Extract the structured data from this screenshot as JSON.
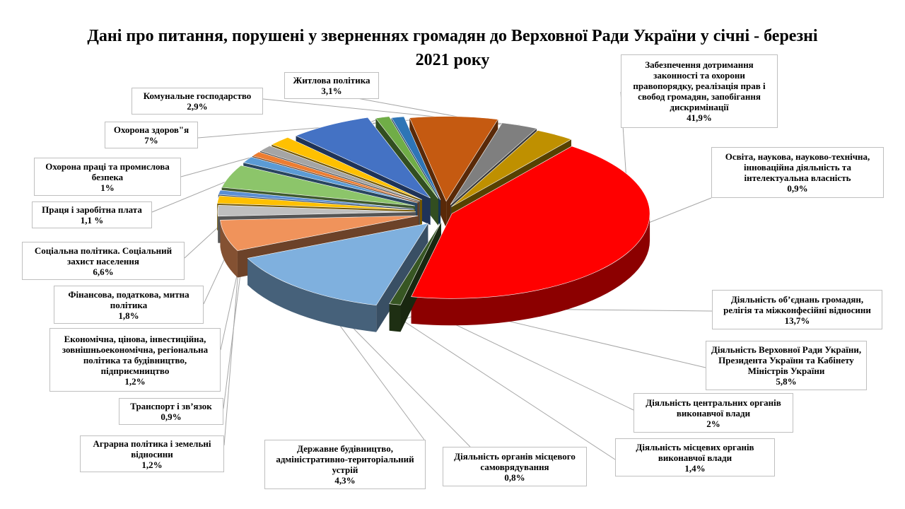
{
  "chart_data": {
    "type": "pie",
    "title": "Дані про питання, порушені у зверненнях громадян до Верховної Ради України у січні - березні 2021 року",
    "slices": [
      {
        "label": "Забезпечення дотримання законності та охорони правопорядку, реалізація прав і свобод громадян, запобігання дискримінації",
        "value": 41.9,
        "text": "41,9%",
        "color": "#ff0000"
      },
      {
        "label": "Освіта, наукова, науково-технічна, інноваційна діяльність та інтелектуальна власність",
        "value": 0.9,
        "text": "0,9%",
        "color": "#375623"
      },
      {
        "label": "Діяльність об’єднань громадян, релігія та міжконфесійні відносини",
        "value": 13.7,
        "text": "13,7%",
        "color": "#7fb0de"
      },
      {
        "label": "Діяльність Верховної Ради України, Президента України та Кабінету Міністрів України",
        "value": 5.8,
        "text": "5,8%",
        "color": "#f0935b"
      },
      {
        "label": "Діяльність центральних органів виконавчої влади",
        "value": 2,
        "text": "2%",
        "color": "#bfbfbf"
      },
      {
        "label": "Діяльність місцевих органів виконавчої влади",
        "value": 1.4,
        "text": "1,4%",
        "color": "#ffc000"
      },
      {
        "label": "Діяльність органів місцевого самоврядування",
        "value": 0.8,
        "text": "0,8%",
        "color": "#5b8fd4"
      },
      {
        "label": "Державне будівництво, адміністративно-територіальний устрій",
        "value": 4.3,
        "text": "4,3%",
        "color": "#8cc56a"
      },
      {
        "label": "Аграрна політика і земельні відносини",
        "value": 1.2,
        "text": "1,2%",
        "color": "#5b9bd5"
      },
      {
        "label": "Транспорт і зв’язок",
        "value": 0.9,
        "text": "0,9%",
        "color": "#ed7d31"
      },
      {
        "label": "Економічна, цінова, інвестиційна, зовнішньоекономічна, регіональна політика та будівництво, підприємництво",
        "value": 1.2,
        "text": "1,2%",
        "color": "#a5a5a5"
      },
      {
        "label": "Фінансова, податкова, митна політика",
        "value": 1.8,
        "text": "1,8%",
        "color": "#ffc000"
      },
      {
        "label": "Соціальна політика. Соціальний захист населення",
        "value": 6.6,
        "text": "6,6%",
        "color": "#4472c4"
      },
      {
        "label": "Праця і заробітна плата",
        "value": 1.1,
        "text": "1,1 %",
        "color": "#70ad47"
      },
      {
        "label": "Охорона праці та промислова безпека",
        "value": 1,
        "text": "1%",
        "color": "#2e75b6"
      },
      {
        "label": "Охорона здоров\"я",
        "value": 7,
        "text": "7%",
        "color": "#c55a11"
      },
      {
        "label": "Комунальне господарство",
        "value": 2.9,
        "text": "2,9%",
        "color": "#7f7f7f"
      },
      {
        "label": "Житлова політика",
        "value": 3.1,
        "text": "3,1%",
        "color": "#bf9000"
      }
    ]
  }
}
